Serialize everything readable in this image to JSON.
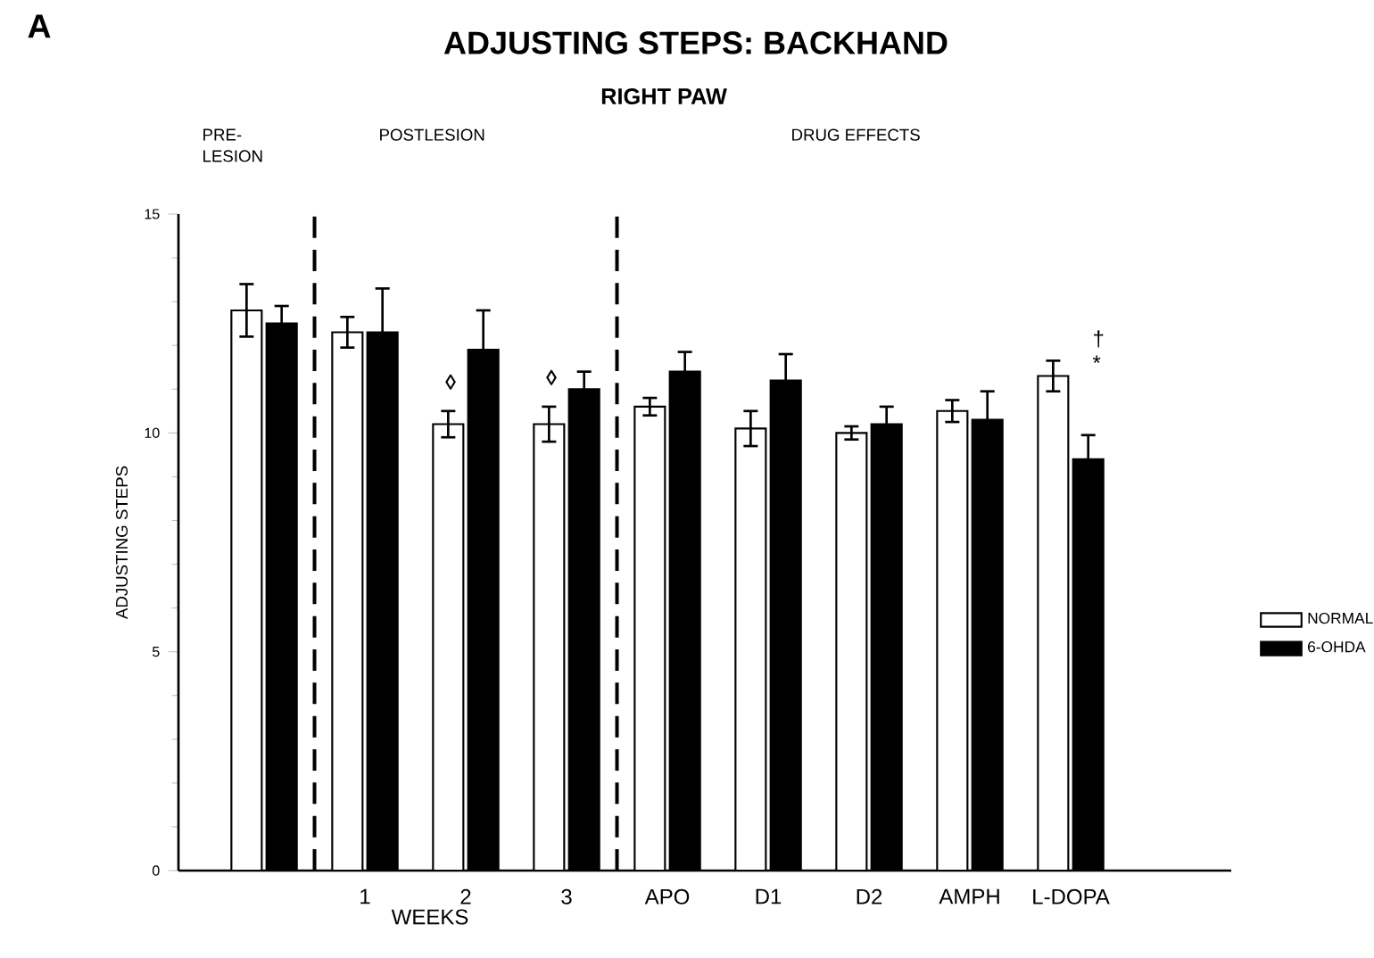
{
  "chart_data": {
    "type": "bar",
    "title": "ADJUSTING STEPS: BACKHAND",
    "subtitle": "RIGHT PAW",
    "xlabel": "WEEKS",
    "ylabel": "ADJUSTING STEPS",
    "categories": [
      null,
      "1",
      "2",
      "3",
      "APO",
      "D1",
      "D2",
      "AMPH",
      "L-DOPA"
    ],
    "series": [
      {
        "name": "NORMAL",
        "color": "#ffffff",
        "values": [
          12.8,
          12.3,
          10.2,
          10.2,
          10.6,
          10.1,
          10.0,
          10.5,
          11.3
        ],
        "errors": [
          0.6,
          0.35,
          0.3,
          0.4,
          0.2,
          0.4,
          0.15,
          0.25,
          0.35
        ]
      },
      {
        "name": "6-OHDA",
        "color": "#000000",
        "values": [
          12.5,
          12.3,
          11.9,
          11.0,
          11.4,
          11.2,
          10.2,
          10.3,
          9.4
        ],
        "errors": [
          0.4,
          1.0,
          0.9,
          0.4,
          0.45,
          0.6,
          0.4,
          0.65,
          0.55
        ]
      }
    ],
    "ylim": [
      0,
      15
    ],
    "yticks": [
      0,
      5,
      10,
      15
    ],
    "legend": "right",
    "grid": false,
    "annotations": [
      "A",
      "PRE-LESION",
      "POSTLESION",
      "DRUG EFFECTS",
      {
        "text": "◊",
        "x": "2",
        "y": 10.8
      },
      {
        "text": "◊",
        "x": "3",
        "y": 10.9
      },
      "†",
      "*"
    ]
  }
}
